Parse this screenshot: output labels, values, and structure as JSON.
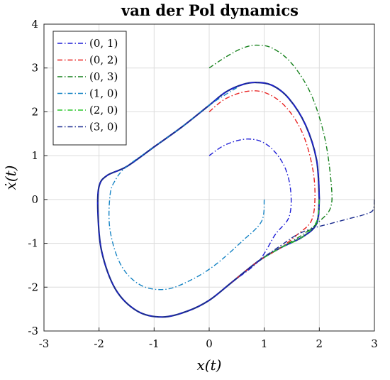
{
  "chart_data": {
    "type": "line",
    "title": "van der Pol dynamics",
    "xlabel": "x(t)",
    "ylabel": "ẋ(t)",
    "xlim": [
      -3,
      3
    ],
    "ylim": [
      -3,
      4
    ],
    "xticks": [
      "-3",
      "-2",
      "-1",
      "0",
      "1",
      "2",
      "3"
    ],
    "yticks": [
      "-3",
      "-2",
      "-1",
      "0",
      "1",
      "2",
      "3",
      "4"
    ],
    "grid": true,
    "legend_position": "top-left",
    "limit_cycle": {
      "color": "#1a2a8c",
      "style": "solid",
      "points": [
        [
          2.0,
          0.0
        ],
        [
          1.95,
          -0.55
        ],
        [
          1.7,
          -0.85
        ],
        [
          1.3,
          -1.1
        ],
        [
          0.9,
          -1.4
        ],
        [
          0.4,
          -1.9
        ],
        [
          0.0,
          -2.3
        ],
        [
          -0.4,
          -2.55
        ],
        [
          -0.85,
          -2.68
        ],
        [
          -1.3,
          -2.55
        ],
        [
          -1.7,
          -2.05
        ],
        [
          -1.95,
          -1.2
        ],
        [
          -2.02,
          -0.3
        ],
        [
          -2.0,
          0.3
        ],
        [
          -1.85,
          0.55
        ],
        [
          -1.5,
          0.75
        ],
        [
          -1.0,
          1.2
        ],
        [
          -0.5,
          1.65
        ],
        [
          0.0,
          2.15
        ],
        [
          0.3,
          2.45
        ],
        [
          0.6,
          2.62
        ],
        [
          0.85,
          2.67
        ],
        [
          1.15,
          2.6
        ],
        [
          1.45,
          2.3
        ],
        [
          1.75,
          1.7
        ],
        [
          1.95,
          0.9
        ],
        [
          2.0,
          0.0
        ]
      ]
    },
    "series": [
      {
        "name": "(0, 1)",
        "color": "#1f1fd6",
        "points": [
          [
            0,
            1.0
          ],
          [
            0.3,
            1.25
          ],
          [
            0.7,
            1.38
          ],
          [
            1.05,
            1.25
          ],
          [
            1.35,
            0.8
          ],
          [
            1.48,
            0.2
          ],
          [
            1.45,
            -0.4
          ],
          [
            1.2,
            -0.8
          ],
          [
            0.9,
            -1.4
          ],
          [
            0.4,
            -1.9
          ],
          [
            0.0,
            -2.3
          ],
          [
            -0.4,
            -2.55
          ],
          [
            -0.85,
            -2.68
          ],
          [
            -1.3,
            -2.55
          ],
          [
            -1.7,
            -2.05
          ],
          [
            -1.95,
            -1.2
          ],
          [
            -2.02,
            -0.3
          ],
          [
            -2.0,
            0.3
          ],
          [
            -1.85,
            0.55
          ],
          [
            -1.5,
            0.75
          ],
          [
            -1.0,
            1.2
          ],
          [
            -0.5,
            1.65
          ],
          [
            0.0,
            2.15
          ],
          [
            0.3,
            2.45
          ],
          [
            0.6,
            2.62
          ],
          [
            0.85,
            2.67
          ],
          [
            1.15,
            2.6
          ],
          [
            1.45,
            2.3
          ],
          [
            1.75,
            1.7
          ],
          [
            1.95,
            0.9
          ],
          [
            2.0,
            0.0
          ],
          [
            1.95,
            -0.55
          ],
          [
            1.7,
            -0.85
          ],
          [
            1.3,
            -1.1
          ]
        ]
      },
      {
        "name": "(0, 2)",
        "color": "#e8201f",
        "points": [
          [
            0,
            2.0
          ],
          [
            0.3,
            2.3
          ],
          [
            0.7,
            2.47
          ],
          [
            1.05,
            2.42
          ],
          [
            1.4,
            2.1
          ],
          [
            1.7,
            1.5
          ],
          [
            1.88,
            0.7
          ],
          [
            1.92,
            0.0
          ],
          [
            1.85,
            -0.5
          ],
          [
            1.6,
            -0.8
          ],
          [
            1.3,
            -1.1
          ],
          [
            0.9,
            -1.4
          ],
          [
            0.4,
            -1.9
          ]
        ]
      },
      {
        "name": "(0, 3)",
        "color": "#15801b",
        "points": [
          [
            0,
            3.0
          ],
          [
            0.3,
            3.25
          ],
          [
            0.6,
            3.45
          ],
          [
            0.85,
            3.52
          ],
          [
            1.15,
            3.45
          ],
          [
            1.5,
            3.1
          ],
          [
            1.85,
            2.4
          ],
          [
            2.1,
            1.4
          ],
          [
            2.22,
            0.3
          ],
          [
            2.2,
            -0.2
          ],
          [
            2.0,
            -0.5
          ],
          [
            1.7,
            -0.8
          ],
          [
            1.3,
            -1.1
          ]
        ]
      },
      {
        "name": "(1, 0)",
        "color": "#1483c4",
        "points": [
          [
            1.0,
            0.0
          ],
          [
            0.95,
            -0.5
          ],
          [
            0.6,
            -0.95
          ],
          [
            0.1,
            -1.5
          ],
          [
            -0.35,
            -1.85
          ],
          [
            -0.8,
            -2.05
          ],
          [
            -1.25,
            -1.95
          ],
          [
            -1.6,
            -1.5
          ],
          [
            -1.8,
            -0.7
          ],
          [
            -1.8,
            0.1
          ],
          [
            -1.7,
            0.45
          ],
          [
            -1.5,
            0.75
          ],
          [
            -1.0,
            1.2
          ],
          [
            -0.5,
            1.65
          ],
          [
            0.0,
            2.15
          ],
          [
            0.5,
            2.55
          ]
        ]
      },
      {
        "name": "(2, 0)",
        "color": "#2ac52a",
        "points": [
          [
            2.0,
            0.0
          ],
          [
            1.95,
            -0.5
          ],
          [
            1.7,
            -0.85
          ],
          [
            1.3,
            -1.1
          ],
          [
            0.9,
            -1.4
          ]
        ]
      },
      {
        "name": "(3, 0)",
        "color": "#1c2d8f",
        "points": [
          [
            3.0,
            0.0
          ],
          [
            2.97,
            -0.25
          ],
          [
            2.8,
            -0.35
          ],
          [
            2.5,
            -0.45
          ],
          [
            2.2,
            -0.55
          ],
          [
            1.9,
            -0.65
          ],
          [
            1.6,
            -0.8
          ],
          [
            1.3,
            -1.05
          ],
          [
            0.9,
            -1.4
          ],
          [
            0.4,
            -1.9
          ],
          [
            0.0,
            -2.3
          ],
          [
            -0.4,
            -2.55
          ],
          [
            -0.85,
            -2.68
          ],
          [
            -1.3,
            -2.55
          ],
          [
            -1.7,
            -2.05
          ],
          [
            -1.95,
            -1.2
          ],
          [
            -2.02,
            -0.3
          ],
          [
            -2.0,
            0.3
          ],
          [
            -1.85,
            0.55
          ],
          [
            -1.5,
            0.75
          ],
          [
            -1.0,
            1.2
          ],
          [
            -0.5,
            1.65
          ],
          [
            0.0,
            2.15
          ]
        ]
      }
    ]
  }
}
